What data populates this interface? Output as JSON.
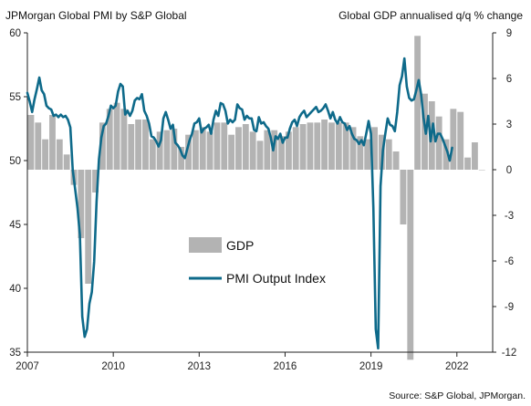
{
  "chart_data": {
    "type": "bar+line",
    "left_title": "JPMorgan Global PMI by S&P Global",
    "right_title": "Global GDP annualised q/q % change",
    "source": "Source: S&P Global, JPMorgan.",
    "left_axis": {
      "min": 35,
      "max": 60,
      "ticks": [
        35,
        40,
        45,
        50,
        55,
        60
      ],
      "series": "PMI Output Index"
    },
    "right_axis": {
      "min": -12,
      "max": 9,
      "ticks": [
        -12,
        -9,
        -6,
        -3,
        0,
        3,
        6,
        9
      ],
      "series": "GDP"
    },
    "x_axis": {
      "min": 2007.0,
      "max": 2023.25,
      "tick_labels": [
        "2007",
        "2010",
        "2013",
        "2016",
        "2019",
        "2022"
      ],
      "tick_values": [
        2007,
        2010,
        2013,
        2016,
        2019,
        2022
      ]
    },
    "legend": [
      {
        "label": "GDP",
        "kind": "bar",
        "color": "#b3b3b3"
      },
      {
        "label": "PMI Output Index",
        "kind": "line",
        "color": "#0e6a8a"
      }
    ],
    "colors": {
      "gdp_bar": "#b3b3b3",
      "pmi_line": "#0e6a8a",
      "axis": "#222222"
    },
    "grid": false,
    "gdp_quarters": [
      "2007Q1",
      "2007Q2",
      "2007Q3",
      "2007Q4",
      "2008Q1",
      "2008Q2",
      "2008Q3",
      "2008Q4",
      "2009Q1",
      "2009Q2",
      "2009Q3",
      "2009Q4",
      "2010Q1",
      "2010Q2",
      "2010Q3",
      "2010Q4",
      "2011Q1",
      "2011Q2",
      "2011Q3",
      "2011Q4",
      "2012Q1",
      "2012Q2",
      "2012Q3",
      "2012Q4",
      "2013Q1",
      "2013Q2",
      "2013Q3",
      "2013Q4",
      "2014Q1",
      "2014Q2",
      "2014Q3",
      "2014Q4",
      "2015Q1",
      "2015Q2",
      "2015Q3",
      "2015Q4",
      "2016Q1",
      "2016Q2",
      "2016Q3",
      "2016Q4",
      "2017Q1",
      "2017Q2",
      "2017Q3",
      "2017Q4",
      "2018Q1",
      "2018Q2",
      "2018Q3",
      "2018Q4",
      "2019Q1",
      "2019Q2",
      "2019Q3",
      "2019Q4",
      "2020Q1",
      "2020Q2",
      "2020Q3",
      "2020Q4",
      "2021Q1",
      "2021Q2",
      "2021Q3",
      "2021Q4",
      "2022Q1",
      "2022Q2",
      "2022Q3",
      "2022Q4"
    ],
    "gdp_values": [
      3.6,
      3.1,
      2.0,
      3.6,
      2.0,
      1.0,
      -1.0,
      -4.5,
      -7.5,
      -1.5,
      3.1,
      4.0,
      4.4,
      4.0,
      3.0,
      3.3,
      3.3,
      2.0,
      2.5,
      2.6,
      2.7,
      1.5,
      2.3,
      2.6,
      2.8,
      2.5,
      3.1,
      3.1,
      2.3,
      2.8,
      3.0,
      2.5,
      1.9,
      2.6,
      2.6,
      2.2,
      2.5,
      2.8,
      3.0,
      3.1,
      3.1,
      3.3,
      3.1,
      3.1,
      3.1,
      2.8,
      2.2,
      2.0,
      2.8,
      2.3,
      2.0,
      1.2,
      -3.6,
      -12.5,
      8.8,
      5.0,
      4.5,
      3.5,
      2.0,
      4.0,
      3.8,
      0.8,
      1.8,
      0.0
    ]
  },
  "pmi_series": {
    "x_start": 2007.0,
    "step": 0.0833333,
    "values": [
      55.3,
      54.6,
      53.8,
      54.8,
      55.6,
      56.5,
      55.5,
      55.2,
      54.3,
      54.1,
      54.0,
      53.5,
      53.6,
      53.4,
      53.6,
      53.4,
      53.5,
      53.2,
      52.6,
      49.3,
      47.8,
      46.3,
      44.2,
      37.8,
      36.2,
      36.8,
      38.8,
      39.7,
      42.1,
      46.8,
      50.1,
      51.8,
      52.7,
      52.9,
      53.5,
      54.3,
      54.1,
      54.3,
      55.4,
      56.0,
      55.8,
      53.6,
      53.9,
      53.5,
      53.9,
      54.7,
      54.9,
      54.8,
      55.2,
      53.9,
      53.5,
      52.9,
      51.9,
      51.8,
      51.5,
      51.1,
      51.6,
      53.3,
      53.8,
      53.2,
      52.5,
      52.8,
      51.4,
      51.2,
      50.9,
      50.4,
      50.2,
      50.9,
      51.6,
      52.1,
      52.9,
      53.0,
      53.3,
      52.2,
      52.5,
      52.6,
      52.8,
      52.1,
      53.2,
      53.9,
      53.5,
      54.5,
      54.4,
      53.9,
      52.9,
      53.2,
      53.0,
      53.2,
      54.4,
      54.1,
      54.0,
      53.2,
      53.5,
      53.3,
      53.3,
      52.4,
      52.3,
      53.4,
      52.9,
      53.0,
      52.7,
      52.5,
      51.8,
      50.8,
      51.9,
      51.7,
      52.1,
      51.4,
      51.8,
      51.8,
      52.5,
      53.0,
      53.2,
      52.7,
      53.4,
      53.7,
      53.9,
      53.4,
      53.6,
      53.8,
      54.0,
      54.2,
      53.8,
      53.9,
      54.1,
      54.4,
      53.9,
      53.3,
      53.8,
      53.2,
      52.9,
      53.4,
      53.0,
      52.9,
      52.4,
      52.7,
      52.1,
      51.7,
      51.6,
      51.3,
      51.6,
      51.2,
      52.1,
      53.1,
      52.1,
      46.3,
      36.8,
      35.3,
      48.0,
      50.8,
      52.1,
      53.3,
      52.8,
      52.7,
      52.3,
      53.8,
      55.9,
      56.6,
      58.0,
      55.8,
      54.9,
      54.7,
      54.8,
      55.5,
      56.3,
      55.2,
      53.4,
      52.1,
      53.5,
      51.5,
      52.9,
      51.5,
      52.1,
      52.1,
      51.7,
      51.2,
      50.7,
      50.0,
      51.0
    ]
  }
}
